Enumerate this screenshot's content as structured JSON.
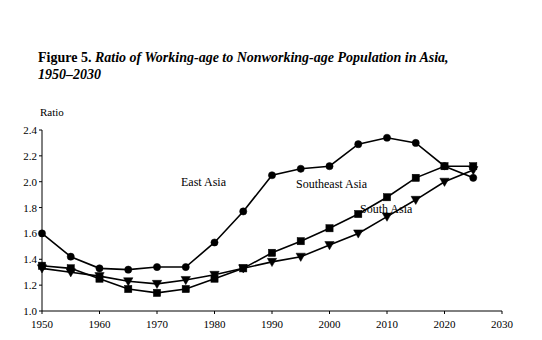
{
  "chart_data": {
    "type": "line",
    "title": "Figure 5. Ratio of Working-age to Nonworking-age Population in Asia, 1950–2030",
    "y_label": "Ratio",
    "x": [
      1950,
      1955,
      1960,
      1965,
      1970,
      1975,
      1980,
      1985,
      1990,
      1995,
      2000,
      2005,
      2010,
      2015,
      2020,
      2025
    ],
    "series": [
      {
        "name": "East Asia",
        "color": "#000000",
        "marker": "circle",
        "line_style": "solid",
        "values": [
          1.6,
          1.42,
          1.33,
          1.32,
          1.34,
          1.34,
          1.53,
          1.77,
          2.05,
          2.1,
          2.12,
          2.29,
          2.34,
          2.3,
          2.12,
          2.03
        ]
      },
      {
        "name": "Southeast Asia",
        "color": "#000000",
        "marker": "square",
        "line_style": "solid",
        "values": [
          1.35,
          1.33,
          1.25,
          1.17,
          1.14,
          1.17,
          1.25,
          1.33,
          1.45,
          1.54,
          1.64,
          1.75,
          1.88,
          2.03,
          2.12,
          2.12
        ]
      },
      {
        "name": "South Asia",
        "color": "#000000",
        "marker": "triangle",
        "line_style": "solid",
        "values": [
          1.33,
          1.3,
          1.27,
          1.23,
          1.21,
          1.24,
          1.28,
          1.33,
          1.38,
          1.42,
          1.51,
          1.6,
          1.73,
          1.86,
          2.0,
          2.09
        ]
      }
    ],
    "xlim": [
      1950,
      2030
    ],
    "xticks": [
      1950,
      1960,
      1970,
      1980,
      1990,
      2000,
      2010,
      2020,
      2030
    ],
    "ylim": [
      1.0,
      2.4
    ],
    "yticks": [
      {
        "value": 1.0,
        "label": "1.0"
      },
      {
        "value": 1.2,
        "label": "1.2"
      },
      {
        "value": 1.4,
        "label": "1.4"
      },
      {
        "value": 1.6,
        "label": "1.6"
      },
      {
        "value": 1.8,
        "label": "1.8"
      },
      {
        "value": 2.0,
        "label": "2.0"
      },
      {
        "value": 2.2,
        "label": "2.2"
      },
      {
        "value": 2.4,
        "label": "2.4"
      }
    ],
    "grid": false
  }
}
